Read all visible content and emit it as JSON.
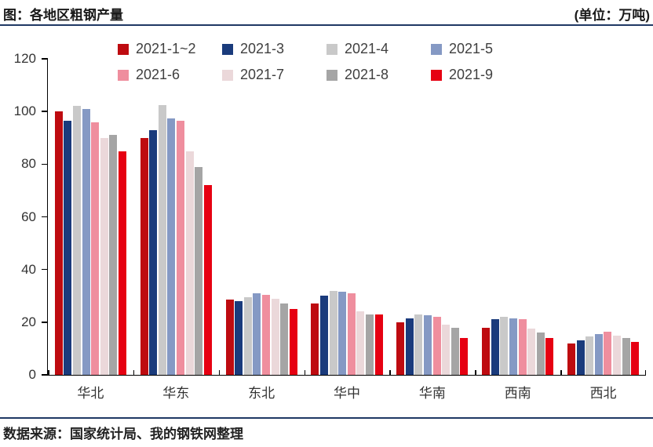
{
  "header": {
    "title": "图：各地区粗钢产量",
    "unit": "(单位：万吨)"
  },
  "source": "数据来源：国家统计局、我的钢铁网整理",
  "colors": {
    "rule": "#1f3864",
    "axis": "#000000",
    "label_text": "#333333",
    "legend_text": "#3f3f3f"
  },
  "chart_data": {
    "type": "bar",
    "title": "图：各地区粗钢产量",
    "unit_label": "(单位：万吨)",
    "xlabel": "",
    "ylabel": "",
    "ylim": [
      0,
      120
    ],
    "yticks": [
      0,
      20,
      40,
      60,
      80,
      100,
      120
    ],
    "grid": false,
    "legend_position": "top",
    "categories": [
      "华北",
      "华东",
      "东北",
      "华中",
      "华南",
      "西南",
      "西北"
    ],
    "series": [
      {
        "name": "2021-1~2",
        "color": "#be0b10",
        "values": [
          100,
          90,
          28.5,
          27,
          20,
          18,
          12
        ]
      },
      {
        "name": "2021-3",
        "color": "#1a3b7c",
        "values": [
          96.5,
          93,
          28,
          30,
          21.5,
          21,
          13
        ]
      },
      {
        "name": "2021-4",
        "color": "#c9c9c9",
        "values": [
          102,
          102.5,
          29.5,
          32,
          23,
          22,
          14.5
        ]
      },
      {
        "name": "2021-5",
        "color": "#8599c4",
        "values": [
          101,
          97.5,
          31,
          31.5,
          22.5,
          21.5,
          15.5
        ]
      },
      {
        "name": "2021-6",
        "color": "#ef8e9e",
        "values": [
          96,
          96.5,
          30.5,
          31,
          22,
          21,
          16.5
        ]
      },
      {
        "name": "2021-7",
        "color": "#ebd8da",
        "values": [
          90,
          85,
          29,
          24,
          19,
          17.5,
          15
        ]
      },
      {
        "name": "2021-8",
        "color": "#a5a5a5",
        "values": [
          91,
          79,
          27,
          23,
          18,
          16,
          14
        ]
      },
      {
        "name": "2021-9",
        "color": "#e60012",
        "values": [
          85,
          72,
          25,
          23,
          14,
          14,
          12.5
        ]
      }
    ]
  }
}
